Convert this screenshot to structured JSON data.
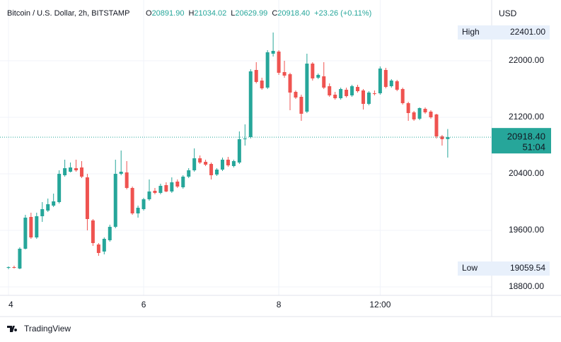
{
  "header": {
    "title": "Bitcoin / U.S. Dollar, 2h, BITSTAMP",
    "ohlc": [
      {
        "key": "O",
        "value": "20891.90"
      },
      {
        "key": "H",
        "value": "21034.02"
      },
      {
        "key": "L",
        "value": "20629.99"
      },
      {
        "key": "C",
        "value": "20918.40"
      }
    ],
    "change": "+23.26 (+0.11%)"
  },
  "chart_data": {
    "type": "candlestick",
    "currency": "USD",
    "up_color": "#26a69a",
    "down_color": "#ef5350",
    "grid": true,
    "categories": [
      "4",
      null,
      null,
      null,
      null,
      null,
      null,
      null,
      null,
      null,
      null,
      null,
      null,
      null,
      null,
      null,
      null,
      null,
      null,
      null,
      null,
      null,
      null,
      null,
      "6",
      null,
      null,
      null,
      null,
      null,
      null,
      null,
      null,
      null,
      null,
      null,
      null,
      null,
      null,
      null,
      null,
      null,
      null,
      null,
      null,
      null,
      null,
      null,
      "8",
      null,
      null,
      null,
      null,
      null,
      null,
      null,
      null,
      null,
      null,
      null,
      null,
      null,
      null,
      null,
      null,
      null,
      "12:00",
      null,
      null,
      null,
      null,
      null,
      null,
      null,
      null,
      null,
      null,
      null,
      null
    ],
    "open": [
      19070,
      19080,
      19060,
      19340,
      19790,
      19500,
      19800,
      19880,
      19950,
      20000,
      20380,
      20430,
      20480,
      20490,
      20350,
      19740,
      19400,
      19300,
      19460,
      19650,
      20400,
      20420,
      20200,
      19840,
      19900,
      20040,
      20160,
      20130,
      20240,
      20150,
      20290,
      20210,
      20360,
      20450,
      20620,
      20570,
      20540,
      20390,
      20460,
      20600,
      20510,
      20560,
      20890,
      20920,
      21870,
      21720,
      21620,
      22100,
      22130,
      21840,
      21810,
      21560,
      21490,
      21280,
      21960,
      21760,
      21780,
      21640,
      21520,
      21470,
      21590,
      21510,
      21630,
      21580,
      21390,
      21540,
      21540,
      21870,
      21640,
      21710,
      21600,
      21400,
      21270,
      21180,
      21320,
      21280,
      21240,
      20930,
      20891.9
    ],
    "high": [
      19090,
      19100,
      19360,
      19820,
      19850,
      19850,
      20000,
      20050,
      20120,
      20450,
      20600,
      20560,
      20600,
      20580,
      20400,
      19760,
      19420,
      19500,
      19680,
      20600,
      20730,
      20580,
      20220,
      19950,
      20060,
      20320,
      20200,
      20260,
      20280,
      20350,
      20320,
      20380,
      20480,
      20760,
      20660,
      20600,
      20560,
      20480,
      20630,
      20640,
      20600,
      21000,
      21100,
      21880,
      21980,
      21760,
      22150,
      22400,
      22150,
      22000,
      21830,
      21580,
      21520,
      22100,
      21980,
      21820,
      21980,
      21680,
      21560,
      21620,
      21620,
      21660,
      21660,
      21600,
      21570,
      21580,
      21920,
      21900,
      21740,
      21730,
      21620,
      21420,
      21290,
      21340,
      21340,
      21300,
      21250,
      20950,
      21034.02
    ],
    "low": [
      19050,
      19060,
      19050,
      19330,
      19480,
      19480,
      19720,
      19860,
      19930,
      19980,
      20360,
      20420,
      20430,
      20340,
      19600,
      19380,
      19240,
      19260,
      19440,
      19630,
      20380,
      20180,
      19820,
      19780,
      19880,
      20020,
      20110,
      20110,
      20140,
      20130,
      20200,
      20190,
      20340,
      20430,
      20540,
      20510,
      20320,
      20370,
      20440,
      20500,
      20490,
      20540,
      20800,
      20900,
      21680,
      21590,
      21600,
      22060,
      21800,
      21760,
      21300,
      21460,
      21150,
      21260,
      21720,
      21740,
      21600,
      21490,
      21450,
      21450,
      21480,
      21490,
      21550,
      21310,
      21370,
      21510,
      21520,
      21610,
      21620,
      21570,
      21380,
      21150,
      21150,
      21160,
      21250,
      21180,
      20900,
      20800,
      20629.99
    ],
    "close": [
      19080,
      19070,
      19340,
      19780,
      19500,
      19800,
      19900,
      19970,
      20010,
      20400,
      20480,
      20490,
      20450,
      20360,
      19760,
      19420,
      19280,
      19480,
      19650,
      20400,
      20430,
      20200,
      19840,
      19920,
      20040,
      20150,
      20130,
      20230,
      20150,
      20280,
      20220,
      20360,
      20450,
      20620,
      20560,
      20530,
      20380,
      20460,
      20600,
      20520,
      20580,
      20890,
      20900,
      21850,
      21700,
      21610,
      22120,
      22140,
      21830,
      21790,
      21550,
      21480,
      21250,
      21960,
      21750,
      21800,
      21620,
      21510,
      21470,
      21600,
      21500,
      21640,
      21570,
      21390,
      21550,
      21530,
      21890,
      21630,
      21720,
      21590,
      21400,
      21260,
      21170,
      21330,
      21270,
      21200,
      20930,
      20890,
      20918.4
    ],
    "ylim": [
      18680,
      22860
    ],
    "yticks": [
      {
        "value": 22000,
        "label": "22000.00"
      },
      {
        "value": 21200,
        "label": "21200.00"
      },
      {
        "value": 20400,
        "label": "20400.00"
      },
      {
        "value": 19600,
        "label": "19600.00"
      },
      {
        "value": 18800,
        "label": "18800.00"
      }
    ],
    "high_marker": {
      "label": "High",
      "value": {
        "value": 22401,
        "label": "22401.00"
      }
    },
    "low_marker": {
      "label": "Low",
      "value": {
        "value": 19059.54,
        "label": "19059.54"
      }
    },
    "last_price": {
      "value": 20918.4,
      "label": "20918.40",
      "countdown": "51:04"
    }
  },
  "footer": {
    "brand": "TradingView"
  }
}
